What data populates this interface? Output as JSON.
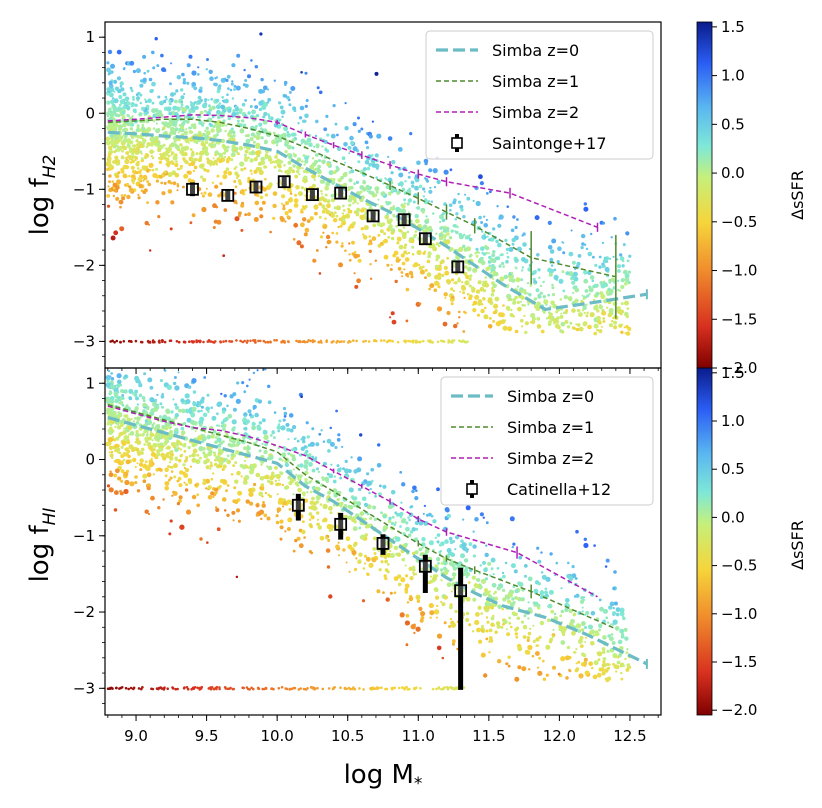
{
  "colors": {
    "simba_z0": "#6bbcc4",
    "simba_z1": "#4f8a2d",
    "simba_z2": "#b01fb6",
    "observation": "#000000",
    "colormap": [
      "#7f0000",
      "#d7301f",
      "#f08b2c",
      "#f6d53b",
      "#c6f07a",
      "#7fe8d6",
      "#5bb8f0",
      "#2b5ef5",
      "#0a1c8c"
    ]
  },
  "chart_data": [
    {
      "type": "scatter",
      "panel": "top",
      "xlabel": "",
      "ylabel": "log f_H2",
      "ylabel_main": "log f",
      "ylabel_sub": "H2",
      "xlim": [
        8.78,
        12.72
      ],
      "ylim": [
        -3.35,
        1.2
      ],
      "xticks": [
        "9.0",
        "9.5",
        "10.0",
        "10.5",
        "11.0",
        "11.5",
        "12.0",
        "12.5"
      ],
      "yticks": [
        "1",
        "0",
        "−1",
        "−2",
        "−3"
      ],
      "ytick_values": [
        1,
        0,
        -1,
        -2,
        -3
      ],
      "colorbar": {
        "label": "ΔsSFR",
        "range": [
          -2.0,
          1.55
        ],
        "ticks": [
          "1.5",
          "1.0",
          "0.5",
          "0.0",
          "−0.5",
          "−1.0",
          "−1.5",
          "−2.0"
        ],
        "tick_values": [
          1.5,
          1.0,
          0.5,
          0.0,
          -0.5,
          -1.0,
          -1.5,
          -2.0
        ]
      },
      "legend": {
        "placement": "top-right",
        "entries": [
          "Simba z=0",
          "Simba z=1",
          "Simba z=2",
          "Saintonge+17"
        ]
      },
      "series": [
        {
          "name": "Simba z=0",
          "style": "dashed-thick",
          "x": [
            8.8,
            9.0,
            9.2,
            9.4,
            9.6,
            9.8,
            10.0,
            10.2,
            10.4,
            10.6,
            10.8,
            11.0,
            11.2,
            11.4,
            11.6,
            11.9,
            12.2,
            12.62
          ],
          "y": [
            -0.25,
            -0.27,
            -0.3,
            -0.32,
            -0.36,
            -0.42,
            -0.5,
            -0.72,
            -0.92,
            -1.12,
            -1.3,
            -1.52,
            -1.75,
            -2.0,
            -2.25,
            -2.58,
            -2.5,
            -2.38
          ]
        },
        {
          "name": "Simba z=1",
          "style": "dashed",
          "x": [
            8.8,
            9.0,
            9.2,
            9.4,
            9.6,
            9.8,
            10.0,
            10.2,
            10.4,
            10.6,
            10.8,
            11.0,
            11.2,
            11.4,
            11.8,
            12.4
          ],
          "y": [
            -0.12,
            -0.1,
            -0.08,
            -0.08,
            -0.12,
            -0.2,
            -0.3,
            -0.45,
            -0.62,
            -0.78,
            -0.95,
            -1.12,
            -1.3,
            -1.48,
            -1.9,
            -2.15
          ],
          "yerr": [
            0,
            0,
            0,
            0,
            0,
            0,
            0,
            0,
            0,
            0,
            0.06,
            0.08,
            0.1,
            0.1,
            0.35,
            0.55
          ]
        },
        {
          "name": "Simba z=2",
          "style": "dashed",
          "x": [
            8.8,
            9.0,
            9.2,
            9.4,
            9.6,
            9.8,
            10.0,
            10.2,
            10.4,
            10.6,
            10.8,
            11.0,
            11.2,
            11.65,
            12.27
          ],
          "y": [
            -0.1,
            -0.08,
            -0.05,
            -0.02,
            -0.03,
            -0.06,
            -0.12,
            -0.28,
            -0.42,
            -0.55,
            -0.68,
            -0.8,
            -0.9,
            -1.05,
            -1.5
          ],
          "yerr": [
            0,
            0,
            0,
            0,
            0,
            0,
            0.03,
            0.04,
            0.04,
            0.05,
            0.05,
            0.06,
            0.06,
            0.07,
            0.06
          ]
        },
        {
          "name": "Saintonge+17",
          "style": "errorbar-square",
          "x": [
            9.4,
            9.65,
            9.85,
            10.05,
            10.25,
            10.45,
            10.68,
            10.9,
            11.05,
            11.28
          ],
          "y": [
            -1.0,
            -1.08,
            -0.97,
            -0.9,
            -1.07,
            -1.05,
            -1.35,
            -1.4,
            -1.65,
            -2.02
          ],
          "yerr": [
            0.09,
            0.08,
            0.07,
            0.07,
            0.06,
            0.06,
            0.06,
            0.07,
            0.07,
            0.08
          ]
        }
      ]
    },
    {
      "type": "scatter",
      "panel": "bottom",
      "xlabel": "log M*",
      "xlabel_main": "log M",
      "xlabel_sub": "*",
      "ylabel": "log f_HI",
      "ylabel_main": "log f",
      "ylabel_sub": "HI",
      "xlim": [
        8.78,
        12.72
      ],
      "ylim": [
        -3.35,
        1.2
      ],
      "xticks": [
        "9.0",
        "9.5",
        "10.0",
        "10.5",
        "11.0",
        "11.5",
        "12.0",
        "12.5"
      ],
      "yticks": [
        "1",
        "0",
        "−1",
        "−2",
        "−3"
      ],
      "ytick_values": [
        1,
        0,
        -1,
        -2,
        -3
      ],
      "colorbar": {
        "label": "ΔsSFR",
        "range": [
          -2.05,
          1.55
        ],
        "ticks": [
          "1.5",
          "1.0",
          "0.5",
          "0.0",
          "−0.5",
          "−1.0",
          "−1.5",
          "−2.0"
        ],
        "tick_values": [
          1.5,
          1.0,
          0.5,
          0.0,
          -0.5,
          -1.0,
          -1.5,
          -2.0
        ]
      },
      "legend": {
        "placement": "top-right",
        "entries": [
          "Simba z=0",
          "Simba z=1",
          "Simba z=2",
          "Catinella+12"
        ]
      },
      "series": [
        {
          "name": "Simba z=0",
          "style": "dashed-thick",
          "x": [
            8.8,
            9.0,
            9.2,
            9.4,
            9.6,
            9.8,
            10.0,
            10.2,
            10.4,
            10.6,
            10.8,
            11.0,
            11.2,
            11.4,
            11.6,
            11.9,
            12.2,
            12.62
          ],
          "y": [
            0.55,
            0.45,
            0.35,
            0.25,
            0.15,
            0.05,
            -0.05,
            -0.35,
            -0.55,
            -0.8,
            -1.05,
            -1.3,
            -1.55,
            -1.75,
            -1.92,
            -2.07,
            -2.3,
            -2.68
          ]
        },
        {
          "name": "Simba z=1",
          "style": "dashed",
          "x": [
            8.8,
            9.0,
            9.2,
            9.4,
            9.6,
            9.8,
            10.0,
            10.2,
            10.4,
            10.6,
            10.8,
            11.0,
            11.2,
            11.4,
            11.8,
            12.4
          ],
          "y": [
            0.72,
            0.62,
            0.52,
            0.42,
            0.32,
            0.22,
            0.1,
            -0.2,
            -0.42,
            -0.65,
            -0.88,
            -1.1,
            -1.3,
            -1.45,
            -1.73,
            -2.22
          ],
          "yerr": [
            0,
            0,
            0,
            0,
            0,
            0,
            0,
            0,
            0,
            0,
            0,
            0.04,
            0.04,
            0.05,
            0.09,
            0
          ]
        },
        {
          "name": "Simba z=2",
          "style": "dashed",
          "x": [
            8.8,
            9.0,
            9.2,
            9.4,
            9.6,
            9.8,
            10.0,
            10.2,
            10.4,
            10.6,
            10.8,
            11.0,
            11.2,
            11.7,
            12.27
          ],
          "y": [
            0.7,
            0.6,
            0.5,
            0.42,
            0.38,
            0.3,
            0.18,
            0.05,
            -0.15,
            -0.35,
            -0.55,
            -0.78,
            -0.95,
            -1.22,
            -1.8
          ],
          "yerr": [
            0,
            0,
            0,
            0,
            0,
            0,
            0,
            0,
            0.03,
            0.03,
            0.04,
            0.04,
            0.05,
            0.08,
            0
          ]
        },
        {
          "name": "Catinella+12",
          "style": "errorbar-square",
          "x": [
            10.15,
            10.45,
            10.75,
            11.05,
            11.3
          ],
          "y": [
            -0.6,
            -0.85,
            -1.1,
            -1.4,
            -1.72
          ],
          "yerr_low": [
            0.2,
            0.2,
            0.15,
            0.35,
            1.3
          ],
          "yerr_high": [
            0.15,
            0.15,
            0.12,
            0.15,
            0.3
          ]
        }
      ]
    }
  ]
}
